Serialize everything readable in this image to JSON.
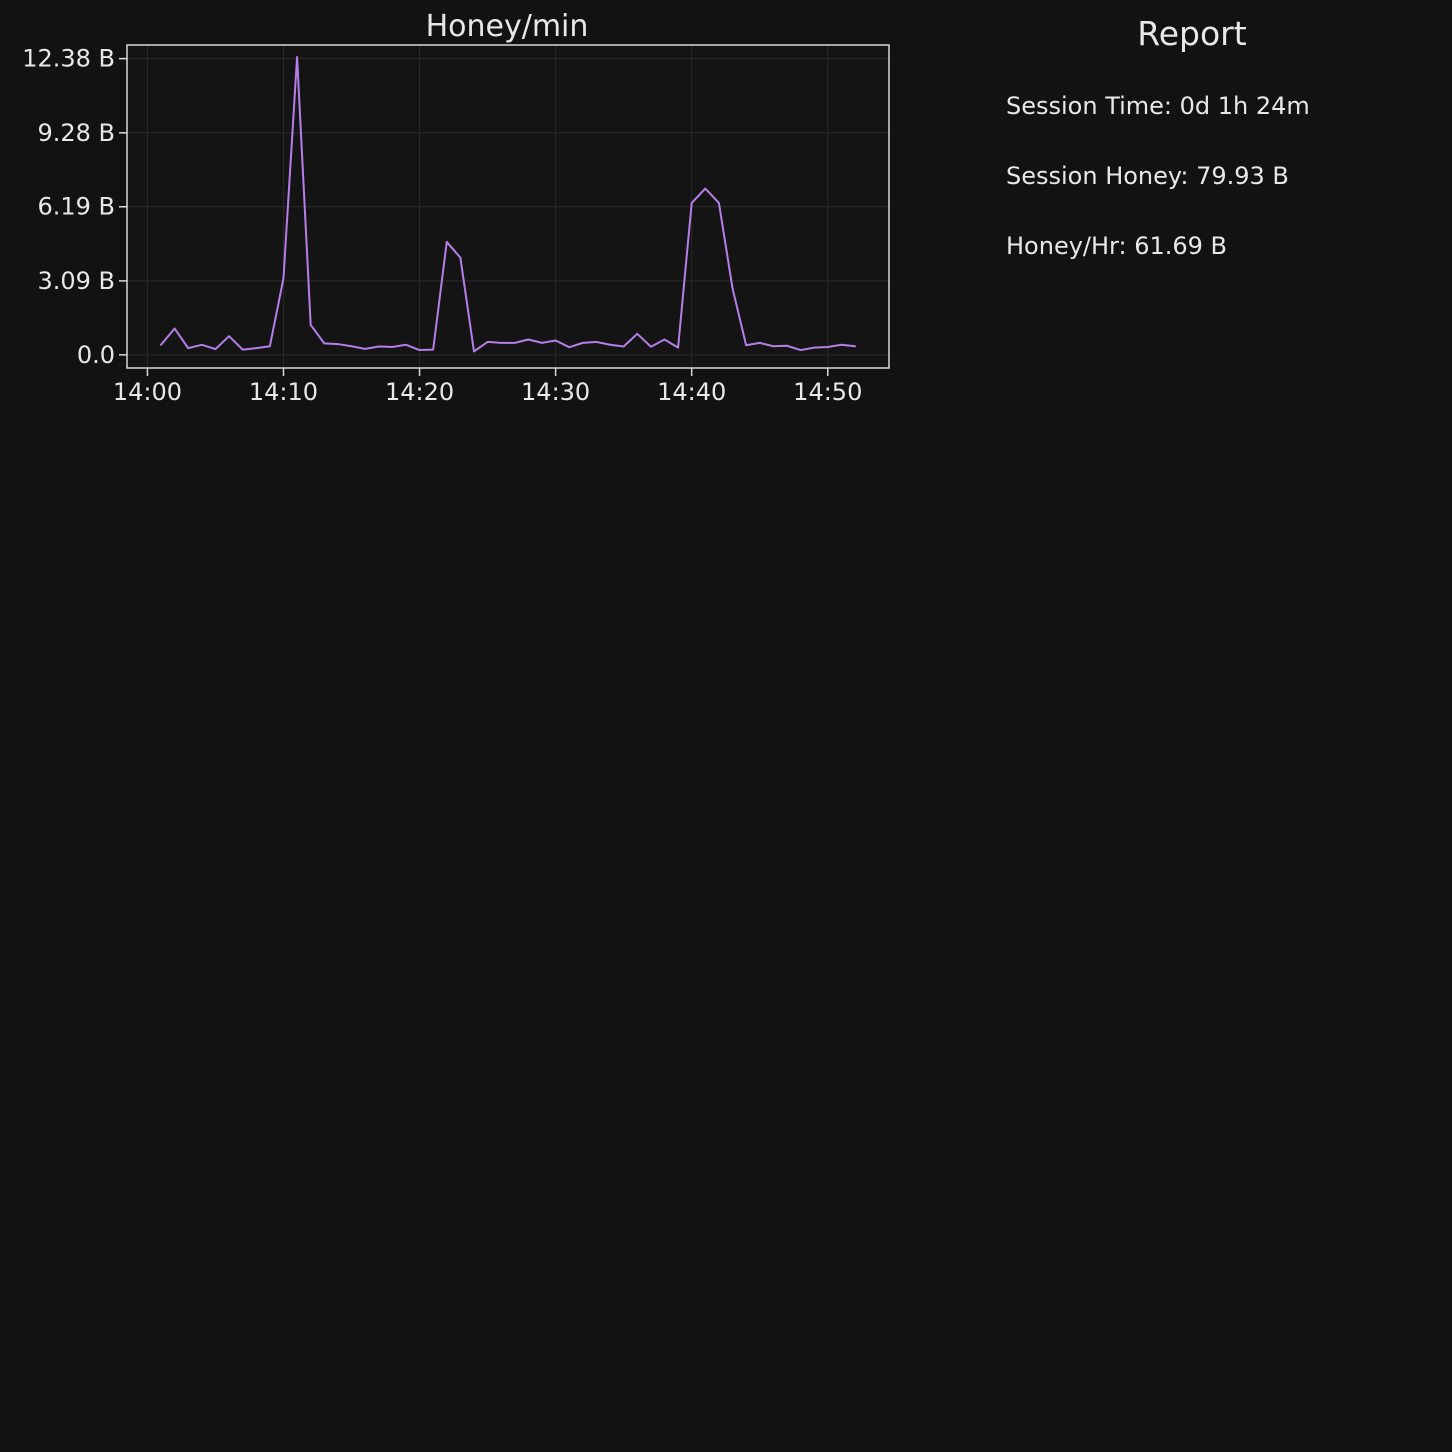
{
  "chart_data": {
    "type": "line",
    "title": "Honey/min",
    "xlabel": "",
    "ylabel": "",
    "x_tick_labels": [
      "14:00",
      "14:10",
      "14:20",
      "14:30",
      "14:40",
      "14:50"
    ],
    "x_ticks": [
      "14:00",
      "14:10",
      "14:20",
      "14:30",
      "14:40",
      "14:50"
    ],
    "y_ticks": [
      0.0,
      3.09,
      6.19,
      9.28,
      12.38
    ],
    "y_tick_labels": [
      "0.0",
      "3.09 B",
      "6.19 B",
      "9.28 B",
      "12.38 B"
    ],
    "xlim": [
      "13:58:30",
      "14:54:30"
    ],
    "ylim": [
      -0.55,
      12.95
    ],
    "grid": true,
    "series": [
      {
        "color": "#b57ee8",
        "x": [
          "14:01",
          "14:02",
          "14:03",
          "14:04",
          "14:05",
          "14:06",
          "14:07",
          "14:08",
          "14:09",
          "14:10",
          "14:11",
          "14:12",
          "14:13",
          "14:14",
          "14:15",
          "14:16",
          "14:17",
          "14:18",
          "14:19",
          "14:20",
          "14:21",
          "14:22",
          "14:23",
          "14:24",
          "14:25",
          "14:26",
          "14:27",
          "14:28",
          "14:29",
          "14:30",
          "14:31",
          "14:32",
          "14:33",
          "14:34",
          "14:35",
          "14:36",
          "14:37",
          "14:38",
          "14:39",
          "14:40",
          "14:41",
          "14:42",
          "14:43",
          "14:44",
          "14:45",
          "14:46",
          "14:47",
          "14:48",
          "14:49",
          "14:50",
          "14:51",
          "14:52"
        ],
        "values": [
          0.42,
          1.1,
          0.28,
          0.42,
          0.24,
          0.78,
          0.22,
          0.28,
          0.36,
          3.2,
          12.45,
          1.25,
          0.48,
          0.45,
          0.36,
          0.25,
          0.35,
          0.33,
          0.42,
          0.2,
          0.22,
          4.72,
          4.06,
          0.14,
          0.54,
          0.5,
          0.5,
          0.64,
          0.5,
          0.6,
          0.32,
          0.5,
          0.54,
          0.42,
          0.35,
          0.88,
          0.34,
          0.64,
          0.3,
          6.35,
          6.95,
          6.35,
          2.78,
          0.4,
          0.5,
          0.36,
          0.38,
          0.2,
          0.3,
          0.33,
          0.42,
          0.36
        ]
      }
    ]
  },
  "report": {
    "title": "Report",
    "session_time": "Session Time: 0d 1h 24m",
    "session_honey": "Session Honey: 79.93 B",
    "honey_per_hour": "Honey/Hr: 61.69 B"
  }
}
